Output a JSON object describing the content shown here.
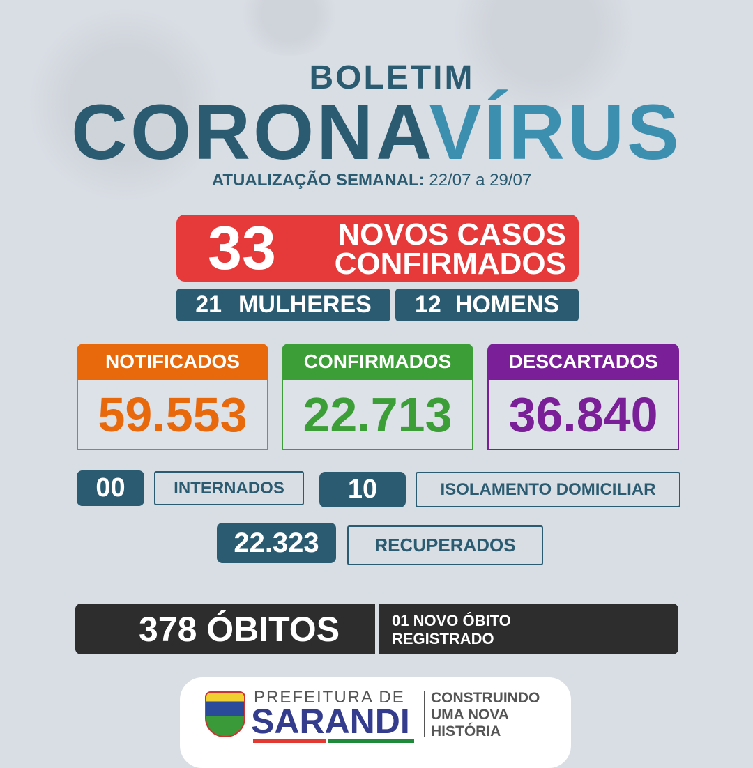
{
  "header": {
    "line1": "BOLETIM",
    "title_a": "CORONA",
    "title_b": "VÍRUS",
    "update_label": "ATUALIZAÇÃO SEMANAL:",
    "update_range": "22/07 a 29/07"
  },
  "new_cases": {
    "count": "33",
    "line1": "NOVOS CASOS",
    "line2": "CONFIRMADOS",
    "women_count": "21",
    "women_label": "MULHERES",
    "men_count": "12",
    "men_label": "HOMENS"
  },
  "cards": [
    {
      "label": "NOTIFICADOS",
      "value": "59.553",
      "color": "#e8680c"
    },
    {
      "label": "CONFIRMADOS",
      "value": "22.713",
      "color": "#3b9e36"
    },
    {
      "label": "DESCARTADOS",
      "value": "36.840",
      "color": "#7a1f97"
    }
  ],
  "stats": {
    "hospitalized_count": "00",
    "hospitalized_label": "INTERNADOS",
    "isolation_count": "10",
    "isolation_label": "ISOLAMENTO DOMICILIAR",
    "recovered_count": "22.323",
    "recovered_label": "RECUPERADOS"
  },
  "deaths": {
    "total": "378 ÓBITOS",
    "new_line1": "01 NOVO ÓBITO",
    "new_line2": "REGISTRADO"
  },
  "footer": {
    "prefeitura": "PREFEITURA DE",
    "city": "SARANDI",
    "slogan1": "CONSTRUINDO",
    "slogan2": "UMA NOVA",
    "slogan3": "HISTÓRIA"
  },
  "colors": {
    "teal": "#2a5b70",
    "blue": "#3d8fb0",
    "red": "#e63a3a",
    "dark": "#2d2d2d"
  }
}
